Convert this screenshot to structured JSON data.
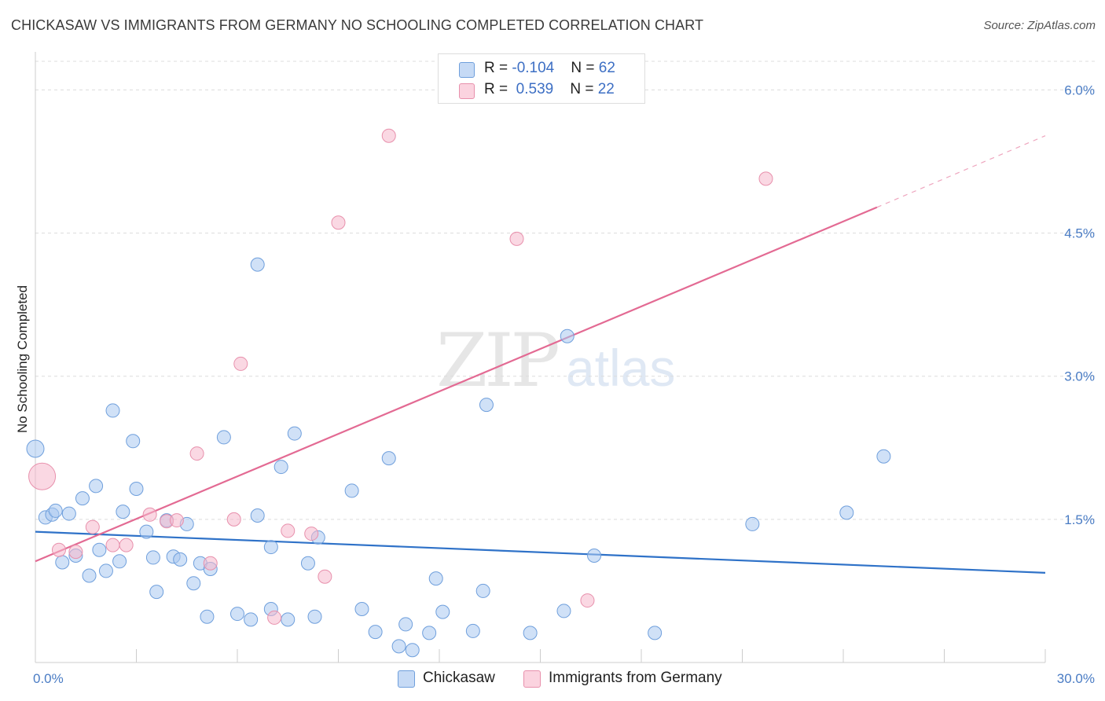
{
  "title": "CHICKASAW VS IMMIGRANTS FROM GERMANY NO SCHOOLING COMPLETED CORRELATION CHART",
  "source": "Source: ZipAtlas.com",
  "watermark": {
    "zip": "ZIP",
    "atlas": "atlas"
  },
  "legend": {
    "rows": [
      {
        "r_label": "R = ",
        "r_value": "-0.104",
        "n_label": "N = ",
        "n_value": "62",
        "color": "#aac8f0"
      },
      {
        "r_label": "R = ",
        "r_value": " 0.539",
        "n_label": "N = ",
        "n_value": "22",
        "color": "#f5b8cc"
      }
    ]
  },
  "chart_data": {
    "type": "scatter",
    "xlabel": "",
    "ylabel": "No Schooling Completed",
    "xlim": [
      0,
      30
    ],
    "ylim": [
      0,
      6.3
    ],
    "x_tick_labels": [
      "0.0%",
      "30.0%"
    ],
    "y_ticks": [
      1.5,
      3.0,
      4.5,
      6.0
    ],
    "y_tick_labels": [
      "1.5%",
      "3.0%",
      "4.5%",
      "6.0%"
    ],
    "series": [
      {
        "name": "Chickasaw",
        "color": "#aac8f0",
        "stroke": "#6f9fdc",
        "trend": {
          "x0": 0,
          "y0": 1.37,
          "x1": 30,
          "y1": 0.94,
          "color": "#2f72c8"
        },
        "points": [
          [
            0.0,
            2.24
          ],
          [
            0.3,
            1.52
          ],
          [
            0.5,
            1.55
          ],
          [
            0.6,
            1.59
          ],
          [
            0.8,
            1.05
          ],
          [
            1.0,
            1.56
          ],
          [
            1.2,
            1.12
          ],
          [
            1.4,
            1.72
          ],
          [
            1.6,
            0.91
          ],
          [
            1.8,
            1.85
          ],
          [
            1.9,
            1.18
          ],
          [
            2.1,
            0.96
          ],
          [
            2.3,
            2.64
          ],
          [
            2.5,
            1.06
          ],
          [
            2.6,
            1.58
          ],
          [
            2.9,
            2.32
          ],
          [
            3.0,
            1.82
          ],
          [
            3.3,
            1.37
          ],
          [
            3.5,
            1.1
          ],
          [
            3.6,
            0.74
          ],
          [
            3.9,
            1.49
          ],
          [
            4.1,
            1.11
          ],
          [
            4.3,
            1.08
          ],
          [
            4.5,
            1.45
          ],
          [
            4.7,
            0.83
          ],
          [
            4.9,
            1.04
          ],
          [
            5.1,
            0.48
          ],
          [
            5.2,
            0.98
          ],
          [
            5.6,
            2.36
          ],
          [
            6.0,
            0.51
          ],
          [
            6.4,
            0.45
          ],
          [
            6.6,
            1.54
          ],
          [
            6.6,
            4.17
          ],
          [
            7.0,
            0.56
          ],
          [
            7.0,
            1.21
          ],
          [
            7.3,
            2.05
          ],
          [
            7.5,
            0.45
          ],
          [
            7.7,
            2.4
          ],
          [
            8.1,
            1.04
          ],
          [
            8.3,
            0.48
          ],
          [
            8.4,
            1.31
          ],
          [
            9.4,
            1.8
          ],
          [
            9.7,
            0.56
          ],
          [
            10.1,
            0.32
          ],
          [
            10.5,
            2.14
          ],
          [
            10.8,
            0.17
          ],
          [
            11.0,
            0.4
          ],
          [
            11.2,
            0.13
          ],
          [
            11.7,
            0.31
          ],
          [
            11.9,
            0.88
          ],
          [
            12.1,
            0.53
          ],
          [
            13.0,
            0.33
          ],
          [
            13.3,
            0.75
          ],
          [
            13.4,
            2.7
          ],
          [
            14.7,
            0.31
          ],
          [
            15.7,
            0.54
          ],
          [
            15.8,
            3.42
          ],
          [
            16.6,
            1.12
          ],
          [
            18.4,
            0.31
          ],
          [
            21.3,
            1.45
          ],
          [
            24.1,
            1.57
          ],
          [
            25.2,
            2.16
          ]
        ],
        "large_point": [
          0.0,
          2.24
        ]
      },
      {
        "name": "Immigrants from Germany",
        "color": "#f5b8cc",
        "stroke": "#e890ac",
        "trend": {
          "x0": 0,
          "y0": 1.06,
          "x1": 25.0,
          "y1": 4.77,
          "dash_x1": 30,
          "dash_y1": 5.52,
          "color": "#e36a93"
        },
        "points": [
          [
            0.2,
            1.95
          ],
          [
            0.7,
            1.18
          ],
          [
            1.2,
            1.16
          ],
          [
            1.7,
            1.42
          ],
          [
            2.3,
            1.23
          ],
          [
            2.7,
            1.23
          ],
          [
            3.4,
            1.55
          ],
          [
            3.9,
            1.48
          ],
          [
            4.2,
            1.49
          ],
          [
            4.8,
            2.19
          ],
          [
            5.2,
            1.04
          ],
          [
            5.9,
            1.5
          ],
          [
            6.1,
            3.13
          ],
          [
            7.1,
            0.47
          ],
          [
            7.5,
            1.38
          ],
          [
            8.2,
            1.35
          ],
          [
            8.6,
            0.9
          ],
          [
            9.0,
            4.61
          ],
          [
            10.5,
            5.52
          ],
          [
            14.3,
            4.44
          ],
          [
            16.4,
            0.65
          ],
          [
            21.7,
            5.07
          ]
        ],
        "large_point": [
          0.2,
          1.95
        ]
      }
    ]
  }
}
